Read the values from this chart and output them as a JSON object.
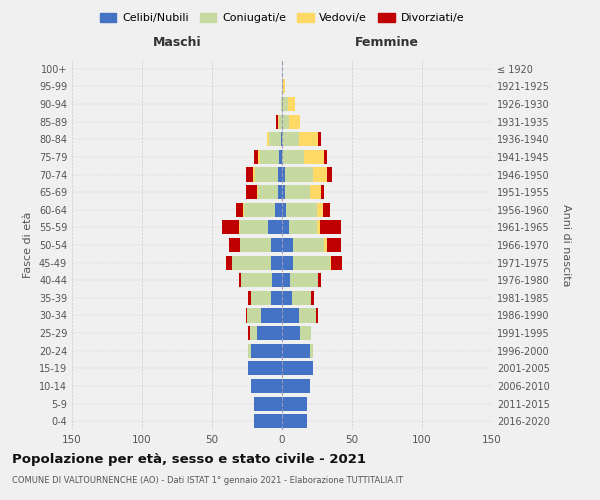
{
  "age_groups": [
    "0-4",
    "5-9",
    "10-14",
    "15-19",
    "20-24",
    "25-29",
    "30-34",
    "35-39",
    "40-44",
    "45-49",
    "50-54",
    "55-59",
    "60-64",
    "65-69",
    "70-74",
    "75-79",
    "80-84",
    "85-89",
    "90-94",
    "95-99",
    "100+"
  ],
  "birth_years": [
    "2016-2020",
    "2011-2015",
    "2006-2010",
    "2001-2005",
    "1996-2000",
    "1991-1995",
    "1986-1990",
    "1981-1985",
    "1976-1980",
    "1971-1975",
    "1966-1970",
    "1961-1965",
    "1956-1960",
    "1951-1955",
    "1946-1950",
    "1941-1945",
    "1936-1940",
    "1931-1935",
    "1926-1930",
    "1921-1925",
    "≤ 1920"
  ],
  "males": {
    "celibi": [
      20,
      20,
      22,
      24,
      22,
      18,
      15,
      8,
      7,
      8,
      8,
      10,
      5,
      3,
      3,
      2,
      1,
      0,
      0,
      0,
      0
    ],
    "coniugati": [
      0,
      0,
      0,
      0,
      2,
      5,
      10,
      14,
      22,
      28,
      22,
      20,
      22,
      14,
      16,
      14,
      8,
      2,
      1,
      0,
      0
    ],
    "vedovi": [
      0,
      0,
      0,
      0,
      0,
      0,
      0,
      0,
      0,
      0,
      0,
      1,
      1,
      1,
      2,
      1,
      2,
      1,
      0,
      0,
      0
    ],
    "divorziati": [
      0,
      0,
      0,
      0,
      0,
      1,
      1,
      2,
      2,
      4,
      8,
      12,
      5,
      8,
      5,
      3,
      0,
      1,
      0,
      0,
      0
    ]
  },
  "females": {
    "nubili": [
      18,
      18,
      20,
      22,
      20,
      13,
      12,
      7,
      6,
      8,
      8,
      5,
      3,
      2,
      2,
      0,
      0,
      0,
      0,
      0,
      0
    ],
    "coniugate": [
      0,
      0,
      0,
      0,
      2,
      8,
      12,
      14,
      20,
      26,
      22,
      20,
      22,
      18,
      20,
      16,
      12,
      5,
      4,
      1,
      0
    ],
    "vedove": [
      0,
      0,
      0,
      0,
      0,
      0,
      0,
      0,
      0,
      1,
      2,
      2,
      4,
      8,
      10,
      14,
      14,
      8,
      5,
      1,
      0
    ],
    "divorziate": [
      0,
      0,
      0,
      0,
      0,
      0,
      2,
      2,
      2,
      8,
      10,
      15,
      5,
      2,
      4,
      2,
      2,
      0,
      0,
      0,
      0
    ]
  },
  "colors": {
    "celibi": "#4472C4",
    "coniugati": "#c5d9a0",
    "vedovi": "#FFD966",
    "divorziati": "#C00000"
  },
  "title": "Popolazione per età, sesso e stato civile - 2021",
  "subtitle": "COMUNE DI VALTOURNENCHE (AO) - Dati ISTAT 1° gennaio 2021 - Elaborazione TUTTITALIA.IT",
  "xlabel_left": "Maschi",
  "xlabel_right": "Femmine",
  "ylabel_left": "Fasce di età",
  "ylabel_right": "Anni di nascita",
  "xlim": 150,
  "bg_color": "#f0f0f0",
  "grid_color": "#cccccc"
}
